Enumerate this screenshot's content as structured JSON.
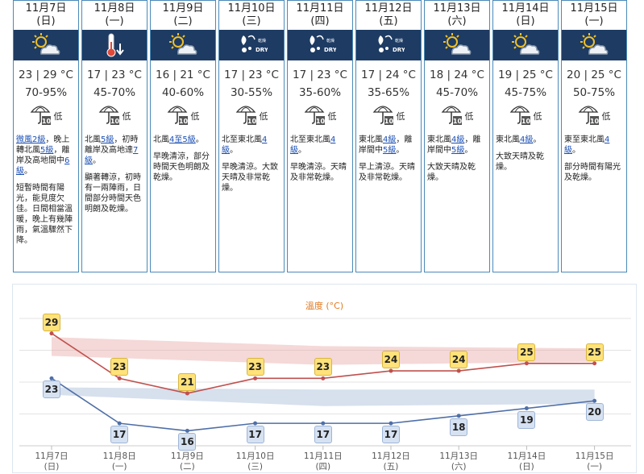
{
  "days": [
    {
      "date": "11月7日",
      "weekday": "(日)",
      "icon": "sunny-periods-cloud-icon",
      "temp": "23 | 29 °C",
      "rh": "70-95%",
      "psr": "低",
      "wind_pre": "",
      "wind_a": "微風2級",
      "wind_mid": "，晚上轉北風",
      "wind_b": "5級",
      "wind_mid2": "，離岸及高地間中",
      "wind_c": "6級",
      "wind_post": "。",
      "desc": "短暫時間有陽光，能見度欠佳。日間相當溫暖，晚上有幾陣雨，氣溫驟然下降。"
    },
    {
      "date": "11月8日",
      "weekday": "(一)",
      "icon": "thermometer-down-icon",
      "temp": "17 | 23 °C",
      "rh": "45-70%",
      "psr": "低",
      "wind_pre": "北風",
      "wind_a": "5級",
      "wind_mid": "，初時離岸及高地達",
      "wind_b": "7級",
      "wind_mid2": "",
      "wind_c": "",
      "wind_post": "。",
      "desc": "顯著轉涼，初時有一兩陣雨，日間部分時間天色明朗及乾燥。"
    },
    {
      "date": "11月9日",
      "weekday": "(二)",
      "icon": "sunny-periods-cloud-icon",
      "temp": "16 | 21 °C",
      "rh": "40-60%",
      "psr": "低",
      "wind_pre": "北風",
      "wind_a": "4至5級",
      "wind_mid": "",
      "wind_b": "",
      "wind_mid2": "",
      "wind_c": "",
      "wind_post": "。",
      "desc": "早晚清涼，部分時間天色明朗及乾燥。"
    },
    {
      "date": "11月10日",
      "weekday": "(三)",
      "icon": "dry-icon",
      "temp": "17 | 23 °C",
      "rh": "30-55%",
      "psr": "低",
      "wind_pre": "北至東北風",
      "wind_a": "4級",
      "wind_mid": "",
      "wind_b": "",
      "wind_mid2": "",
      "wind_c": "",
      "wind_post": "。",
      "desc": "早晚清涼。大致天晴及非常乾燥。"
    },
    {
      "date": "11月11日",
      "weekday": "(四)",
      "icon": "dry-icon",
      "temp": "17 | 23 °C",
      "rh": "35-60%",
      "psr": "低",
      "wind_pre": "北至東北風",
      "wind_a": "4級",
      "wind_mid": "",
      "wind_b": "",
      "wind_mid2": "",
      "wind_c": "",
      "wind_post": "。",
      "desc": "早晚清涼。天晴及非常乾燥。"
    },
    {
      "date": "11月12日",
      "weekday": "(五)",
      "icon": "dry-icon",
      "temp": "17 | 24 °C",
      "rh": "35-65%",
      "psr": "低",
      "wind_pre": "東北風",
      "wind_a": "4級",
      "wind_mid": "，離岸間中",
      "wind_b": "5級",
      "wind_mid2": "",
      "wind_c": "",
      "wind_post": "。",
      "desc": "早上清涼。天晴及非常乾燥。"
    },
    {
      "date": "11月13日",
      "weekday": "(六)",
      "icon": "sunny-periods-cloud-icon",
      "temp": "18 | 24 °C",
      "rh": "45-70%",
      "psr": "低",
      "wind_pre": "東北風",
      "wind_a": "4級",
      "wind_mid": "，離岸間中",
      "wind_b": "5級",
      "wind_mid2": "",
      "wind_c": "",
      "wind_post": "。",
      "desc": "大致天晴及乾燥。"
    },
    {
      "date": "11月14日",
      "weekday": "(日)",
      "icon": "sunny-periods-cloud-icon",
      "temp": "19 | 25 °C",
      "rh": "45-75%",
      "psr": "低",
      "wind_pre": "東北風",
      "wind_a": "4級",
      "wind_mid": "",
      "wind_b": "",
      "wind_mid2": "",
      "wind_c": "",
      "wind_post": "。",
      "desc": "大致天晴及乾燥。"
    },
    {
      "date": "11月15日",
      "weekday": "(一)",
      "icon": "sunny-periods-cloud-icon",
      "temp": "20 | 25 °C",
      "rh": "50-75%",
      "psr": "低",
      "wind_pre": "東至東北風",
      "wind_a": "4級",
      "wind_mid": "",
      "wind_b": "",
      "wind_mid2": "",
      "wind_c": "",
      "wind_post": "。",
      "desc": "部分時間有陽光及乾燥。"
    }
  ],
  "chart_data": {
    "type": "line",
    "title": "溫度 (°C)",
    "categories": [
      "11月7日",
      "11月8日",
      "11月9日",
      "11月10日",
      "11月11日",
      "11月12日",
      "11月13日",
      "11月14日",
      "11月15日"
    ],
    "weekdays": [
      "(日)",
      "(一)",
      "(二)",
      "(三)",
      "(四)",
      "(五)",
      "(六)",
      "(日)",
      "(一)"
    ],
    "series": [
      {
        "values": [
          29,
          23,
          21,
          23,
          23,
          24,
          24,
          25,
          25
        ],
        "color": "#c0504d"
      },
      {
        "values": [
          23,
          17,
          16,
          17,
          17,
          17,
          18,
          19,
          20
        ],
        "color": "#4f6fa8"
      }
    ],
    "ylim": [
      14,
      31
    ],
    "grid": true
  },
  "colors": {
    "header_bg": "#1d3b63",
    "border": "#4a8ab8",
    "hi_label": "#ffe27a",
    "lo_label": "#d6e2f2"
  }
}
